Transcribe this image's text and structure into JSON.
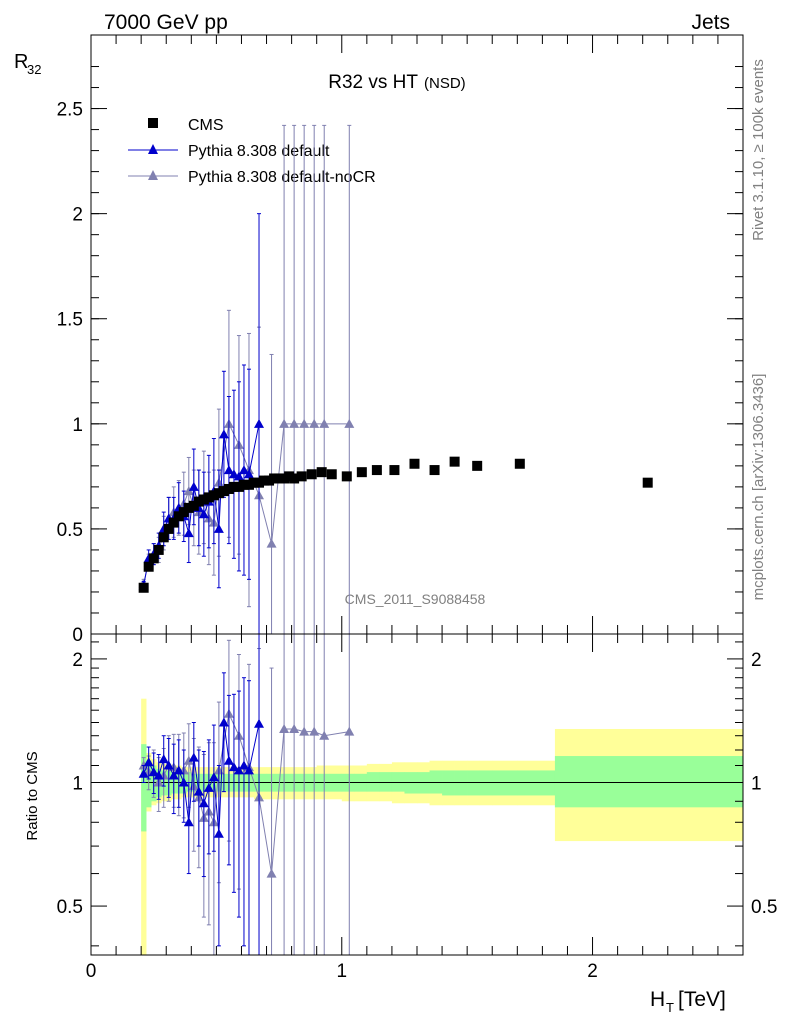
{
  "chart_data": [
    {
      "type": "scatter",
      "name": "main",
      "title": "R32 vs HT",
      "title_suffix": "(NSD)",
      "top_left": "7000 GeV pp",
      "top_right": "Jets",
      "ylabel": "R",
      "ylabel_sub": "32",
      "watermark": "CMS_2011_S9088458",
      "side_top": "Rivet 3.1.10, ≥ 100k events",
      "side_bottom": "mcplots.cern.ch [arXiv:1306.3436]",
      "xlim": [
        0,
        2.6
      ],
      "ylim": [
        0,
        2.85
      ],
      "yticks": [
        0,
        0.5,
        1,
        1.5,
        2,
        2.5
      ],
      "ytick_labels": [
        "0",
        "0.5",
        "1",
        "1.5",
        "2",
        "2.5"
      ],
      "legend_position": "top-left",
      "series": [
        {
          "name": "CMS",
          "marker": "square",
          "color": "#000000",
          "x": [
            0.21,
            0.23,
            0.25,
            0.27,
            0.29,
            0.31,
            0.33,
            0.35,
            0.37,
            0.39,
            0.41,
            0.43,
            0.45,
            0.47,
            0.49,
            0.51,
            0.53,
            0.55,
            0.57,
            0.59,
            0.61,
            0.63,
            0.65,
            0.67,
            0.69,
            0.71,
            0.73,
            0.75,
            0.77,
            0.79,
            0.81,
            0.84,
            0.88,
            0.92,
            0.96,
            1.02,
            1.08,
            1.14,
            1.21,
            1.29,
            1.37,
            1.45,
            1.54,
            1.71,
            2.22
          ],
          "y": [
            0.22,
            0.32,
            0.36,
            0.4,
            0.46,
            0.5,
            0.53,
            0.56,
            0.58,
            0.6,
            0.61,
            0.63,
            0.64,
            0.65,
            0.66,
            0.67,
            0.68,
            0.69,
            0.7,
            0.7,
            0.71,
            0.71,
            0.72,
            0.72,
            0.73,
            0.73,
            0.74,
            0.74,
            0.74,
            0.75,
            0.74,
            0.75,
            0.76,
            0.77,
            0.76,
            0.75,
            0.77,
            0.78,
            0.78,
            0.81,
            0.78,
            0.82,
            0.8,
            0.81,
            0.72
          ]
        },
        {
          "name": "Pythia 8.308 default",
          "marker": "triangle",
          "color": "#0000cc",
          "x": [
            0.21,
            0.23,
            0.25,
            0.27,
            0.29,
            0.31,
            0.33,
            0.35,
            0.37,
            0.39,
            0.41,
            0.43,
            0.45,
            0.47,
            0.49,
            0.51,
            0.53,
            0.55,
            0.57,
            0.59,
            0.61,
            0.63,
            0.67
          ],
          "y": [
            0.23,
            0.36,
            0.38,
            0.42,
            0.5,
            0.55,
            0.55,
            0.6,
            0.56,
            0.48,
            0.7,
            0.6,
            0.57,
            0.63,
            0.68,
            0.5,
            0.95,
            0.78,
            0.76,
            0.75,
            0.78,
            0.76,
            1.0
          ],
          "yerr": [
            0.02,
            0.04,
            0.05,
            0.06,
            0.08,
            0.1,
            0.1,
            0.12,
            0.12,
            0.14,
            0.18,
            0.18,
            0.2,
            0.22,
            0.25,
            0.28,
            0.3,
            0.35,
            0.4,
            0.45,
            0.5,
            0.5,
            1.0
          ]
        },
        {
          "name": "Pythia 8.308 default-noCR",
          "marker": "triangle",
          "color": "#8080b0",
          "x": [
            0.21,
            0.23,
            0.25,
            0.27,
            0.29,
            0.31,
            0.33,
            0.35,
            0.37,
            0.39,
            0.41,
            0.43,
            0.45,
            0.47,
            0.49,
            0.51,
            0.55,
            0.59,
            0.63,
            0.67,
            0.72,
            0.77,
            0.81,
            0.85,
            0.89,
            0.93,
            1.03
          ],
          "y": [
            0.24,
            0.34,
            0.38,
            0.4,
            0.48,
            0.55,
            0.58,
            0.6,
            0.62,
            0.68,
            0.6,
            0.58,
            0.65,
            0.55,
            0.53,
            0.72,
            1.0,
            0.9,
            0.78,
            0.66,
            0.43,
            1.0,
            1.0,
            1.0,
            1.0,
            1.0,
            1.0
          ],
          "yerr": [
            0.02,
            0.04,
            0.05,
            0.06,
            0.08,
            0.1,
            0.12,
            0.13,
            0.15,
            0.16,
            0.18,
            0.2,
            0.22,
            0.22,
            0.25,
            0.35,
            0.54,
            0.52,
            0.65,
            0.8,
            0.9,
            1.42,
            1.42,
            1.42,
            1.42,
            1.42,
            1.42
          ]
        }
      ]
    },
    {
      "type": "scatter",
      "name": "ratio",
      "ylabel": "Ratio to CMS",
      "xlabel": "H",
      "xlabel_sub": "T",
      "xlabel_unit": "[TeV]",
      "xlim": [
        0,
        2.6
      ],
      "ylim": [
        0.38,
        2.3
      ],
      "log_y": true,
      "xticks": [
        0,
        1,
        2
      ],
      "xtick_labels": [
        "0",
        "1",
        "2"
      ],
      "yticks": [
        0.5,
        1,
        2
      ],
      "ytick_labels": [
        "0.5",
        "1",
        "2"
      ],
      "bands": {
        "edges": [
          0.2,
          0.22,
          0.24,
          0.26,
          0.28,
          0.3,
          0.32,
          0.34,
          0.36,
          0.38,
          0.4,
          0.42,
          0.44,
          0.46,
          0.48,
          0.5,
          0.55,
          0.6,
          0.65,
          0.7,
          0.75,
          0.8,
          0.85,
          0.9,
          0.95,
          1.0,
          1.05,
          1.1,
          1.15,
          1.2,
          1.25,
          1.3,
          1.35,
          1.4,
          1.45,
          1.5,
          1.55,
          1.6,
          1.7,
          1.85,
          2.6
        ],
        "inner_lo": [
          0.76,
          0.87,
          0.9,
          0.92,
          0.93,
          0.93,
          0.94,
          0.94,
          0.94,
          0.95,
          0.95,
          0.95,
          0.95,
          0.95,
          0.95,
          0.95,
          0.95,
          0.95,
          0.95,
          0.95,
          0.95,
          0.95,
          0.95,
          0.95,
          0.95,
          0.95,
          0.95,
          0.95,
          0.95,
          0.95,
          0.94,
          0.94,
          0.94,
          0.93,
          0.93,
          0.93,
          0.93,
          0.93,
          0.93,
          0.87
        ],
        "inner_hi": [
          1.24,
          1.13,
          1.1,
          1.08,
          1.07,
          1.07,
          1.06,
          1.06,
          1.06,
          1.06,
          1.05,
          1.05,
          1.05,
          1.05,
          1.05,
          1.05,
          1.05,
          1.05,
          1.05,
          1.05,
          1.05,
          1.05,
          1.05,
          1.05,
          1.05,
          1.05,
          1.05,
          1.06,
          1.06,
          1.06,
          1.06,
          1.06,
          1.07,
          1.07,
          1.07,
          1.07,
          1.07,
          1.07,
          1.07,
          1.16
        ],
        "outer_lo": [
          0.38,
          0.85,
          0.88,
          0.89,
          0.9,
          0.9,
          0.91,
          0.91,
          0.92,
          0.92,
          0.92,
          0.92,
          0.92,
          0.92,
          0.92,
          0.92,
          0.92,
          0.92,
          0.91,
          0.91,
          0.91,
          0.91,
          0.91,
          0.91,
          0.91,
          0.9,
          0.9,
          0.9,
          0.9,
          0.89,
          0.89,
          0.89,
          0.88,
          0.88,
          0.88,
          0.88,
          0.88,
          0.88,
          0.88,
          0.72
        ],
        "outer_hi": [
          1.6,
          1.18,
          1.14,
          1.12,
          1.11,
          1.11,
          1.1,
          1.1,
          1.09,
          1.09,
          1.09,
          1.09,
          1.09,
          1.09,
          1.09,
          1.09,
          1.09,
          1.09,
          1.09,
          1.09,
          1.09,
          1.09,
          1.09,
          1.1,
          1.1,
          1.1,
          1.1,
          1.11,
          1.11,
          1.12,
          1.12,
          1.12,
          1.13,
          1.13,
          1.13,
          1.13,
          1.13,
          1.13,
          1.13,
          1.35
        ],
        "inner_color": "#99ff99",
        "outer_color": "#ffff99"
      },
      "series": [
        {
          "name": "Pythia 8.308 default",
          "color": "#0000cc",
          "x": [
            0.21,
            0.23,
            0.25,
            0.27,
            0.29,
            0.31,
            0.33,
            0.35,
            0.37,
            0.39,
            0.41,
            0.43,
            0.45,
            0.47,
            0.49,
            0.51,
            0.53,
            0.55,
            0.57,
            0.59,
            0.61,
            0.63,
            0.67
          ],
          "y": [
            1.05,
            1.12,
            1.06,
            1.04,
            1.14,
            1.1,
            1.04,
            1.07,
            1.0,
            0.8,
            1.15,
            0.95,
            0.89,
            0.97,
            1.03,
            0.75,
            1.4,
            1.13,
            1.09,
            1.07,
            1.1,
            1.07,
            1.39
          ],
          "yerr": [
            0.05,
            0.1,
            0.12,
            0.13,
            0.16,
            0.18,
            0.2,
            0.2,
            0.2,
            0.2,
            0.25,
            0.25,
            0.3,
            0.3,
            0.35,
            0.35,
            0.45,
            0.5,
            0.55,
            0.6,
            0.7,
            0.7,
            1.4
          ]
        },
        {
          "name": "Pythia 8.308 default-noCR",
          "color": "#8080b0",
          "x": [
            0.21,
            0.23,
            0.25,
            0.27,
            0.29,
            0.31,
            0.33,
            0.35,
            0.37,
            0.39,
            0.41,
            0.43,
            0.45,
            0.47,
            0.49,
            0.51,
            0.55,
            0.59,
            0.63,
            0.67,
            0.72,
            0.77,
            0.81,
            0.85,
            0.89,
            0.93,
            1.03
          ],
          "y": [
            1.1,
            1.06,
            1.06,
            1.0,
            1.04,
            1.1,
            1.09,
            1.07,
            1.07,
            1.13,
            0.98,
            0.92,
            0.82,
            0.85,
            0.8,
            1.07,
            1.47,
            1.3,
            1.09,
            0.92,
            0.6,
            1.35,
            1.35,
            1.33,
            1.33,
            1.3,
            1.33
          ],
          "yerr": [
            0.05,
            0.1,
            0.14,
            0.15,
            0.17,
            0.2,
            0.22,
            0.24,
            0.25,
            0.26,
            0.3,
            0.3,
            0.35,
            0.4,
            0.45,
            0.5,
            0.75,
            0.75,
            0.85,
            1.2,
            1.3,
            1.9,
            1.9,
            1.9,
            1.9,
            1.9,
            1.9
          ]
        }
      ]
    }
  ]
}
